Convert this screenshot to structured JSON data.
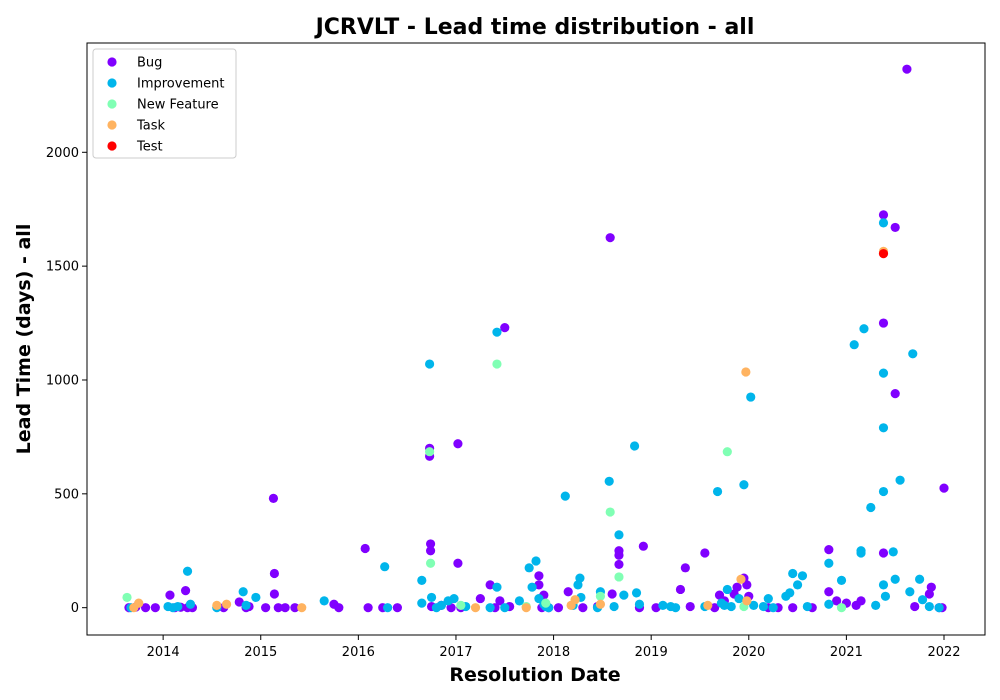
{
  "chart_data": {
    "type": "scatter",
    "title": "JCRVLT - Lead time distribution - all",
    "xlabel": "Resolution Date",
    "ylabel": "Lead Time (days) - all",
    "xlim": [
      2013.22,
      2022.42
    ],
    "ylim": [
      -120,
      2480
    ],
    "x_ticks": [
      {
        "value": 2014,
        "label": "2014"
      },
      {
        "value": 2015,
        "label": "2015"
      },
      {
        "value": 2016,
        "label": "2016"
      },
      {
        "value": 2017,
        "label": "2017"
      },
      {
        "value": 2018,
        "label": "2018"
      },
      {
        "value": 2019,
        "label": "2019"
      },
      {
        "value": 2020,
        "label": "2020"
      },
      {
        "value": 2021,
        "label": "2021"
      },
      {
        "value": 2022,
        "label": "2022"
      }
    ],
    "y_ticks": [
      {
        "value": 0,
        "label": "0"
      },
      {
        "value": 500,
        "label": "500"
      },
      {
        "value": 1000,
        "label": "1000"
      },
      {
        "value": 1500,
        "label": "1500"
      },
      {
        "value": 2000,
        "label": "2000"
      }
    ],
    "grid": false,
    "legend_position": "top-left",
    "series": [
      {
        "name": "Bug",
        "color": "#8000ff",
        "points": [
          [
            2013.65,
            0
          ],
          [
            2013.72,
            3
          ],
          [
            2013.82,
            0
          ],
          [
            2013.92,
            0
          ],
          [
            2014.07,
            55
          ],
          [
            2014.12,
            0
          ],
          [
            2014.18,
            2
          ],
          [
            2014.23,
            75
          ],
          [
            2014.25,
            0
          ],
          [
            2014.3,
            0
          ],
          [
            2014.62,
            0
          ],
          [
            2014.78,
            25
          ],
          [
            2014.85,
            0
          ],
          [
            2014.88,
            5
          ],
          [
            2015.05,
            0
          ],
          [
            2015.13,
            480
          ],
          [
            2015.14,
            150
          ],
          [
            2015.14,
            60
          ],
          [
            2015.18,
            0
          ],
          [
            2015.25,
            0
          ],
          [
            2015.35,
            0
          ],
          [
            2015.75,
            15
          ],
          [
            2015.8,
            0
          ],
          [
            2016.07,
            260
          ],
          [
            2016.1,
            0
          ],
          [
            2016.25,
            0
          ],
          [
            2016.4,
            0
          ],
          [
            2016.73,
            700
          ],
          [
            2016.73,
            665
          ],
          [
            2016.74,
            280
          ],
          [
            2016.74,
            250
          ],
          [
            2016.75,
            5
          ],
          [
            2016.85,
            10
          ],
          [
            2016.95,
            0
          ],
          [
            2017.02,
            720
          ],
          [
            2017.02,
            195
          ],
          [
            2017.05,
            0
          ],
          [
            2017.25,
            40
          ],
          [
            2017.35,
            100
          ],
          [
            2017.4,
            0
          ],
          [
            2017.45,
            30
          ],
          [
            2017.5,
            1230
          ],
          [
            2017.55,
            5
          ],
          [
            2017.85,
            140
          ],
          [
            2017.85,
            100
          ],
          [
            2017.88,
            0
          ],
          [
            2017.9,
            55
          ],
          [
            2017.95,
            0
          ],
          [
            2018.05,
            0
          ],
          [
            2018.15,
            70
          ],
          [
            2018.3,
            0
          ],
          [
            2018.45,
            5
          ],
          [
            2018.58,
            1625
          ],
          [
            2018.6,
            60
          ],
          [
            2018.67,
            250
          ],
          [
            2018.67,
            230
          ],
          [
            2018.67,
            190
          ],
          [
            2018.88,
            0
          ],
          [
            2018.92,
            270
          ],
          [
            2019.05,
            0
          ],
          [
            2019.3,
            80
          ],
          [
            2019.35,
            175
          ],
          [
            2019.4,
            5
          ],
          [
            2019.55,
            240
          ],
          [
            2019.65,
            0
          ],
          [
            2019.7,
            55
          ],
          [
            2019.75,
            30
          ],
          [
            2019.85,
            60
          ],
          [
            2019.88,
            90
          ],
          [
            2019.95,
            130
          ],
          [
            2019.98,
            100
          ],
          [
            2020.0,
            50
          ],
          [
            2020.2,
            0
          ],
          [
            2020.3,
            0
          ],
          [
            2020.45,
            0
          ],
          [
            2020.65,
            0
          ],
          [
            2020.82,
            255
          ],
          [
            2020.82,
            70
          ],
          [
            2020.9,
            30
          ],
          [
            2021.0,
            20
          ],
          [
            2021.1,
            10
          ],
          [
            2021.15,
            30
          ],
          [
            2021.38,
            1725
          ],
          [
            2021.38,
            1250
          ],
          [
            2021.38,
            240
          ],
          [
            2021.5,
            940
          ],
          [
            2021.5,
            1670
          ],
          [
            2021.62,
            2365
          ],
          [
            2021.7,
            5
          ],
          [
            2021.85,
            60
          ],
          [
            2021.87,
            90
          ],
          [
            2021.95,
            0
          ],
          [
            2022.0,
            525
          ],
          [
            2021.98,
            0
          ]
        ]
      },
      {
        "name": "Improvement",
        "color": "#00b5eb",
        "points": [
          [
            2013.67,
            0
          ],
          [
            2014.05,
            5
          ],
          [
            2014.1,
            0
          ],
          [
            2014.15,
            5
          ],
          [
            2014.25,
            160
          ],
          [
            2014.28,
            15
          ],
          [
            2014.55,
            0
          ],
          [
            2014.82,
            70
          ],
          [
            2014.85,
            10
          ],
          [
            2014.95,
            45
          ],
          [
            2015.65,
            30
          ],
          [
            2016.27,
            180
          ],
          [
            2016.3,
            0
          ],
          [
            2016.65,
            120
          ],
          [
            2016.65,
            20
          ],
          [
            2016.73,
            1070
          ],
          [
            2016.75,
            45
          ],
          [
            2016.8,
            0
          ],
          [
            2016.85,
            10
          ],
          [
            2016.92,
            30
          ],
          [
            2016.98,
            40
          ],
          [
            2017.1,
            5
          ],
          [
            2017.35,
            0
          ],
          [
            2017.42,
            1210
          ],
          [
            2017.42,
            90
          ],
          [
            2017.5,
            0
          ],
          [
            2017.65,
            30
          ],
          [
            2017.75,
            175
          ],
          [
            2017.78,
            90
          ],
          [
            2017.82,
            205
          ],
          [
            2017.85,
            40
          ],
          [
            2017.9,
            15
          ],
          [
            2017.92,
            5
          ],
          [
            2017.95,
            0
          ],
          [
            2018.12,
            490
          ],
          [
            2018.2,
            10
          ],
          [
            2018.25,
            100
          ],
          [
            2018.27,
            130
          ],
          [
            2018.28,
            45
          ],
          [
            2018.45,
            0
          ],
          [
            2018.48,
            70
          ],
          [
            2018.57,
            555
          ],
          [
            2018.62,
            5
          ],
          [
            2018.67,
            320
          ],
          [
            2018.72,
            55
          ],
          [
            2018.83,
            710
          ],
          [
            2018.85,
            65
          ],
          [
            2018.88,
            15
          ],
          [
            2019.12,
            10
          ],
          [
            2019.2,
            5
          ],
          [
            2019.25,
            0
          ],
          [
            2019.55,
            5
          ],
          [
            2019.68,
            510
          ],
          [
            2019.72,
            20
          ],
          [
            2019.75,
            10
          ],
          [
            2019.78,
            80
          ],
          [
            2019.82,
            5
          ],
          [
            2019.9,
            40
          ],
          [
            2019.95,
            540
          ],
          [
            2020.02,
            925
          ],
          [
            2020.05,
            10
          ],
          [
            2020.15,
            5
          ],
          [
            2020.2,
            40
          ],
          [
            2020.25,
            0
          ],
          [
            2020.38,
            50
          ],
          [
            2020.42,
            65
          ],
          [
            2020.45,
            150
          ],
          [
            2020.5,
            100
          ],
          [
            2020.55,
            140
          ],
          [
            2020.6,
            5
          ],
          [
            2020.82,
            195
          ],
          [
            2020.82,
            15
          ],
          [
            2020.95,
            120
          ],
          [
            2021.08,
            1155
          ],
          [
            2021.15,
            250
          ],
          [
            2021.15,
            240
          ],
          [
            2021.18,
            1225
          ],
          [
            2021.25,
            440
          ],
          [
            2021.3,
            10
          ],
          [
            2021.38,
            1690
          ],
          [
            2021.38,
            1030
          ],
          [
            2021.38,
            790
          ],
          [
            2021.38,
            510
          ],
          [
            2021.38,
            100
          ],
          [
            2021.4,
            50
          ],
          [
            2021.48,
            245
          ],
          [
            2021.5,
            125
          ],
          [
            2021.55,
            560
          ],
          [
            2021.68,
            1115
          ],
          [
            2021.65,
            70
          ],
          [
            2021.75,
            125
          ],
          [
            2021.78,
            35
          ],
          [
            2021.85,
            5
          ],
          [
            2021.95,
            0
          ]
        ]
      },
      {
        "name": "New Feature",
        "color": "#80ffb4",
        "points": [
          [
            2013.63,
            45
          ],
          [
            2016.74,
            195
          ],
          [
            2016.73,
            685
          ],
          [
            2017.05,
            10
          ],
          [
            2017.42,
            1070
          ],
          [
            2017.72,
            5
          ],
          [
            2017.92,
            20
          ],
          [
            2018.48,
            50
          ],
          [
            2018.58,
            420
          ],
          [
            2018.67,
            135
          ],
          [
            2019.78,
            685
          ],
          [
            2019.95,
            5
          ],
          [
            2020.95,
            0
          ]
        ]
      },
      {
        "name": "Task",
        "color": "#ffb360",
        "points": [
          [
            2013.7,
            0
          ],
          [
            2013.75,
            20
          ],
          [
            2014.55,
            10
          ],
          [
            2014.65,
            15
          ],
          [
            2015.42,
            0
          ],
          [
            2017.2,
            0
          ],
          [
            2017.72,
            0
          ],
          [
            2018.18,
            10
          ],
          [
            2018.22,
            35
          ],
          [
            2018.48,
            15
          ],
          [
            2019.58,
            10
          ],
          [
            2019.92,
            125
          ],
          [
            2019.97,
            1035
          ],
          [
            2019.98,
            30
          ],
          [
            2021.38,
            1565
          ]
        ]
      },
      {
        "name": "Test",
        "color": "#ff0000",
        "points": [
          [
            2021.38,
            1555
          ]
        ]
      }
    ]
  }
}
